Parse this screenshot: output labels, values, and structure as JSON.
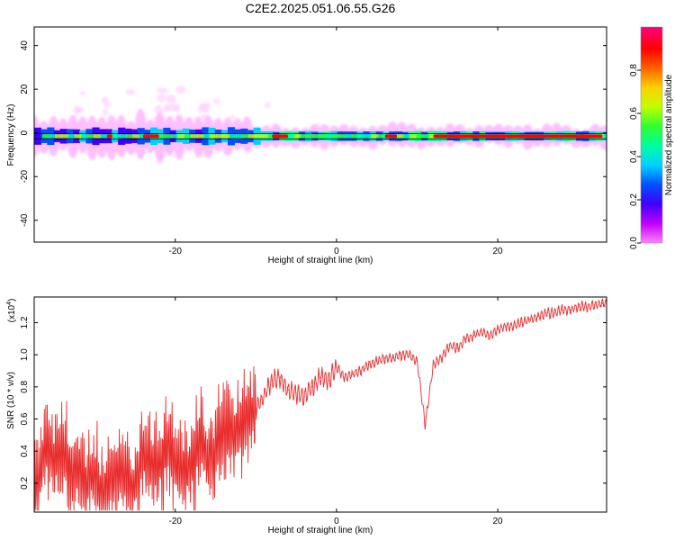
{
  "page": {
    "title": "C2E2.2025.051.06.55.G26"
  },
  "chart_data": [
    {
      "type": "heatmap",
      "xlabel": "Height of straight line (km)",
      "ylabel": "Frequency (Hz)",
      "xlim": [
        -37.5,
        33.5
      ],
      "ylim": [
        -50,
        48.5
      ],
      "x_ticks": [
        -20,
        0,
        20
      ],
      "y_ticks": [
        -40,
        -20,
        0,
        20,
        40
      ],
      "colorbar": {
        "label": "Normalized spectral amplitude",
        "range": [
          0,
          1
        ],
        "ticks": [
          0.0,
          0.2,
          0.4,
          0.6,
          0.8
        ],
        "tick_labels": [
          "0.0",
          "0.2",
          "0.4",
          "0.6",
          "0.8"
        ],
        "colormap": [
          "#ff80ff",
          "#c000ff",
          "#4000ff",
          "#0050ff",
          "#00d0ff",
          "#00ffa0",
          "#30ff30",
          "#c0ff00",
          "#ffd000",
          "#ff6000",
          "#ff0000",
          "#ff0080"
        ]
      },
      "ridge": {
        "frequency_hz": -1.5,
        "color": "#ff0000",
        "segments": [
          [
            -28.5,
            -27.8
          ],
          [
            -24,
            -22
          ],
          [
            -8,
            -6
          ],
          [
            6,
            7.5
          ],
          [
            12,
            33
          ]
        ]
      },
      "line_color": "#000000"
    },
    {
      "type": "line",
      "xlabel": "Height of straight line (km)",
      "ylabel": "SNR (10 * v/v)",
      "exponent_label": "(x10",
      "exponent_value": "4",
      "exponent_close": ")",
      "xlim": [
        -37.5,
        33.5
      ],
      "ylim": [
        0.02,
        1.36
      ],
      "x_ticks": [
        -20,
        0,
        20
      ],
      "y_ticks": [
        0.2,
        0.4,
        0.6,
        0.8,
        1.0,
        1.2
      ],
      "y_tick_labels": [
        "0.2",
        "0.4",
        "0.6",
        "0.8",
        "1.0",
        "1.2"
      ],
      "line_color": "#e82c2c",
      "x": [
        -37.5,
        -36,
        -35,
        -34,
        -33,
        -32,
        -31,
        -30,
        -29,
        -28,
        -27,
        -26,
        -25,
        -24,
        -23,
        -22,
        -21,
        -20,
        -19,
        -18,
        -17,
        -16,
        -15,
        -14,
        -13,
        -12,
        -11,
        -10,
        -9,
        -8,
        -7,
        -6,
        -5,
        -4,
        -3,
        -2,
        -1,
        0,
        1,
        2,
        3,
        4,
        5,
        6,
        7,
        8,
        9,
        10,
        11,
        12,
        13,
        14,
        15,
        16,
        17,
        18,
        19,
        20,
        21,
        22,
        23,
        24,
        25,
        26,
        27,
        28,
        29,
        30,
        31,
        32,
        33,
        33.5
      ],
      "y": [
        0.1,
        0.42,
        0.34,
        0.38,
        0.28,
        0.3,
        0.2,
        0.26,
        0.12,
        0.22,
        0.28,
        0.24,
        0.18,
        0.38,
        0.32,
        0.3,
        0.44,
        0.3,
        0.28,
        0.3,
        0.46,
        0.36,
        0.4,
        0.56,
        0.5,
        0.54,
        0.62,
        0.66,
        0.74,
        0.84,
        0.86,
        0.78,
        0.76,
        0.74,
        0.8,
        0.86,
        0.84,
        0.92,
        0.86,
        0.88,
        0.9,
        0.94,
        0.96,
        0.98,
        0.98,
        1.0,
        1.0,
        0.96,
        0.56,
        0.94,
        0.98,
        1.06,
        1.04,
        1.1,
        1.12,
        1.14,
        1.12,
        1.16,
        1.18,
        1.18,
        1.2,
        1.22,
        1.24,
        1.26,
        1.26,
        1.28,
        1.28,
        1.3,
        1.3,
        1.31,
        1.32,
        1.32
      ]
    }
  ]
}
